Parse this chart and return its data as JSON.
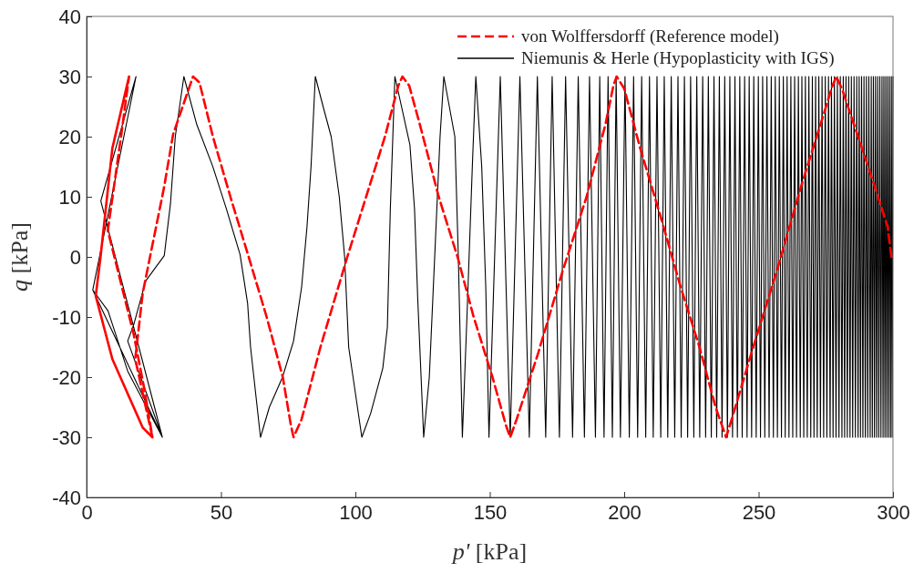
{
  "chart_data": {
    "type": "line",
    "xlabel": "p' [kPa]",
    "ylabel": "q [kPa]",
    "xlim": [
      0,
      300
    ],
    "xticks": [
      0,
      50,
      100,
      150,
      200,
      250,
      300
    ],
    "ylim": [
      -40,
      40
    ],
    "yticks": [
      -40,
      -30,
      -20,
      -10,
      0,
      10,
      20,
      30,
      40
    ],
    "grid": false,
    "legend": "top right",
    "series": [
      {
        "name": "von Wolffersdorff (Reference model)",
        "color": "#ff0000",
        "line_style": "dashed",
        "x": [
          15.8,
          9.6,
          5.1,
          3.4,
          9.6,
          20.9,
          24.5,
          21.5,
          17.5,
          7.9,
          13,
          15.8,
          9.6,
          5.1,
          3.4,
          9.6,
          20.9,
          24.5,
          18.1,
          20.9,
          28.8,
          32.2,
          39.6,
          42,
          47,
          53.5,
          60.3,
          67,
          73,
          76,
          77,
          80,
          87,
          97,
          104,
          111,
          116,
          117.5,
          120,
          124,
          131,
          138,
          144,
          151,
          156,
          157.6,
          160,
          168,
          177,
          186,
          193,
          196,
          197.2,
          200,
          206,
          214,
          221,
          228,
          234,
          237.9,
          240,
          248,
          257,
          266,
          273,
          277.5,
          278.9,
          281,
          287,
          293,
          298,
          299.4
        ],
        "values": [
          30,
          18.1,
          -0.4,
          -6.5,
          -17,
          -28.4,
          -30,
          -22,
          -12.8,
          4.4,
          20.6,
          30,
          18.1,
          -0.4,
          -6.5,
          -17,
          -28.4,
          -30,
          -17,
          -6,
          11.5,
          20.4,
          30,
          29,
          20,
          10,
          0,
          -10,
          -20,
          -28,
          -30,
          -27,
          -15,
          0,
          10,
          20,
          28.5,
          30,
          28.5,
          22,
          10,
          0,
          -10,
          -20,
          -28,
          -30,
          -27,
          -16,
          -2.5,
          10,
          22,
          28.5,
          30,
          28,
          18,
          6,
          -5,
          -15,
          -25,
          -30,
          -27,
          -15,
          -2,
          12,
          22,
          28.5,
          30,
          28,
          20,
          12,
          5,
          0
        ]
      },
      {
        "name": "Niemunis & Herle (Hypoplasticity with IGS)",
        "color": "#000000",
        "line_style": "solid",
        "x": [
          18.4,
          5.3,
          28.2,
          2.3,
          18.4,
          5.3,
          28.2,
          2.3,
          8,
          15.3,
          28.2,
          15.3,
          17.6,
          22,
          28.9,
          31.2,
          33,
          36.2,
          41,
          46.9,
          52,
          57.1,
          59.9,
          61,
          64.7,
          68,
          72.9,
          77,
          80,
          82,
          83.5,
          85.1,
          88,
          91,
          94,
          96,
          97.5,
          102.4,
          105.7,
          110.2,
          111.9,
          113,
          114.7,
          120.3,
          122,
          123.2,
          125.4,
          127.5,
          129.5,
          131.5,
          132.9,
          137,
          138.3,
          139.8,
          141.5,
          143.5,
          144.8,
          147,
          148.5,
          149.7,
          153.9,
          157.6,
          161.2,
          164.7,
          167.7,
          170.8,
          173.2,
          175.9,
          178.2,
          180.8,
          182.9,
          185.2,
          187.1,
          189.3,
          190.9,
          192.5,
          194.0,
          195.6,
          197.0,
          198.6,
          200.3,
          201.9,
          203.5,
          205.0,
          206.5,
          208.0,
          209.4,
          210.8,
          212.2,
          213.6,
          214.9,
          216.2,
          217.5,
          218.8,
          220.0,
          221.2,
          222.4,
          223.6,
          224.7,
          225.9,
          227.0,
          228.1,
          229.2,
          230.3,
          231.3,
          232.4,
          233.4,
          234.4,
          235.4,
          236.4,
          237.4,
          238.4,
          239.3,
          240.3,
          241.2,
          242.1,
          243.0,
          243.9,
          244.8,
          245.7,
          246.5,
          247.4,
          248.2,
          249.1,
          249.9,
          250.7,
          251.5,
          252.3,
          253.1,
          253.9,
          254.7,
          255.5,
          256.2,
          257.0,
          257.7,
          258.5,
          259.2,
          259.9,
          260.6,
          261.3,
          262.0,
          262.7,
          263.4,
          264.1,
          264.8,
          265.5,
          266.1,
          266.8,
          267.4,
          268.1,
          268.7,
          269.4,
          270.0,
          270.6,
          271.2,
          271.8,
          272.4,
          273.0,
          273.6,
          274.2,
          274.8,
          275.4,
          276.0,
          276.6,
          277.1,
          277.7,
          278.2,
          278.8,
          279.3,
          279.9,
          280.4,
          281.0,
          281.5,
          282.0,
          282.5,
          283.0,
          283.5,
          284.0,
          284.5,
          285.0,
          285.5,
          286.0,
          286.5,
          287.0,
          287.4,
          287.9,
          288.3,
          288.8,
          289.2,
          289.7,
          290.1,
          290.6,
          291.0,
          291.5,
          291.9,
          292.3,
          292.7,
          293.1,
          293.5,
          293.9,
          294.3,
          294.7,
          295.1,
          295.5,
          295.9,
          296.3,
          296.6,
          297.0,
          297.3,
          297.7,
          298.0,
          298.4,
          298.7,
          299.1,
          299.4,
          299.7,
          300
        ],
        "values": [
          30,
          9.3,
          -30,
          -5.5,
          30,
          9.3,
          -30,
          -5.5,
          -9,
          -19,
          -30,
          -14,
          -11.2,
          -4,
          0.2,
          8.8,
          20,
          30,
          22,
          15.1,
          8,
          0.4,
          -7.7,
          -15,
          -30,
          -25,
          -20,
          -14,
          -5,
          5,
          15,
          30,
          25,
          20,
          10,
          0,
          -15,
          -30,
          -26,
          -18.5,
          -11.7,
          8,
          30,
          18.6,
          8,
          -7,
          -30,
          -20,
          0,
          20,
          30,
          20,
          0,
          -30,
          -10,
          15,
          30,
          15,
          -5,
          -30,
          30,
          -30,
          30,
          -30,
          30,
          -30,
          30,
          -30,
          30,
          -30,
          30,
          -30,
          30,
          -30,
          30,
          -30,
          30,
          -30,
          30,
          -30,
          30,
          -30,
          30,
          -30,
          30,
          -30,
          30,
          -30,
          30,
          -30,
          30,
          -30,
          30,
          -30,
          30,
          -30,
          30,
          -30,
          30,
          -30,
          30,
          -30,
          30,
          -30,
          30,
          -30,
          30,
          -30,
          30,
          -30,
          30,
          -30,
          30,
          -30,
          30,
          -30,
          30,
          -30,
          30,
          -30,
          30,
          -30,
          30,
          -30,
          30,
          -30,
          30,
          -30,
          30,
          -30,
          30,
          -30,
          30,
          -30,
          30,
          -30,
          30,
          -30,
          30,
          -30,
          30,
          -30,
          30,
          -30,
          30,
          -30,
          30,
          -30,
          30,
          -30,
          30,
          -30,
          30,
          -30,
          30,
          -30,
          30,
          -30,
          30,
          -30,
          30,
          -30,
          30,
          -30,
          30,
          -30,
          30,
          -30,
          30,
          -30,
          30,
          -30,
          30,
          -30,
          30,
          -30,
          30,
          -30,
          30,
          -30,
          30,
          -30,
          30,
          -30,
          30,
          -30,
          30,
          -30,
          30,
          -30,
          30,
          -30,
          30,
          -30,
          30,
          -30,
          30,
          -30,
          30,
          -30,
          30,
          -30,
          30,
          -30,
          30,
          -30,
          30,
          -30,
          30,
          -30,
          30,
          -30,
          30,
          -30,
          30,
          -30,
          30
        ]
      }
    ]
  }
}
